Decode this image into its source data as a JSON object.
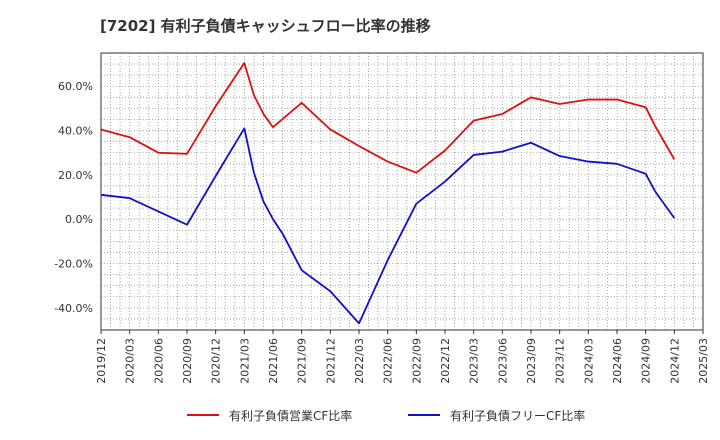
{
  "chart_data": {
    "type": "line",
    "title": "[7202]  有利子負債キャッシュフロー比率の推移",
    "xlabel": "",
    "ylabel": "",
    "ylim": [
      -50,
      75
    ],
    "yticks": [
      60,
      40,
      20,
      0,
      -20,
      -40
    ],
    "ytick_labels": [
      "60.0%",
      "40.0%",
      "20.0%",
      "0.0%",
      "-20.0%",
      "-40.0%"
    ],
    "xticks": [
      "2019/12",
      "2020/03",
      "2020/06",
      "2020/09",
      "2020/12",
      "2021/03",
      "2021/06",
      "2021/09",
      "2021/12",
      "2022/03",
      "2022/06",
      "2022/09",
      "2022/12",
      "2023/03",
      "2023/06",
      "2023/09",
      "2023/12",
      "2024/03",
      "2024/06",
      "2024/09",
      "2024/12",
      "2025/03"
    ],
    "grid": true,
    "legend_position": "bottom",
    "series": [
      {
        "name": "有利子負債営業CF比率",
        "color": "#dd1111",
        "points": [
          [
            "2019/12",
            40.5
          ],
          [
            "2020/03",
            37.0
          ],
          [
            "2020/06",
            30.0
          ],
          [
            "2020/09",
            29.5
          ],
          [
            "2020/12",
            51.0
          ],
          [
            "2021/03",
            70.5
          ],
          [
            "2021/04",
            56.0
          ],
          [
            "2021/05",
            47.5
          ],
          [
            "2021/06",
            41.5
          ],
          [
            "2021/09",
            52.5
          ],
          [
            "2021/12",
            40.5
          ],
          [
            "2022/03",
            33.0
          ],
          [
            "2022/06",
            26.0
          ],
          [
            "2022/09",
            21.0
          ],
          [
            "2022/12",
            31.0
          ],
          [
            "2023/03",
            44.5
          ],
          [
            "2023/06",
            47.5
          ],
          [
            "2023/09",
            55.0
          ],
          [
            "2023/12",
            52.0
          ],
          [
            "2024/03",
            54.0
          ],
          [
            "2024/06",
            54.0
          ],
          [
            "2024/09",
            50.5
          ],
          [
            "2024/10",
            42.0
          ],
          [
            "2024/11",
            34.5
          ],
          [
            "2024/12",
            27.0
          ]
        ]
      },
      {
        "name": "有利子負債フリーCF比率",
        "color": "#1111cc",
        "points": [
          [
            "2019/12",
            11.0
          ],
          [
            "2020/03",
            9.5
          ],
          [
            "2020/06",
            3.5
          ],
          [
            "2020/09",
            -2.5
          ],
          [
            "2020/12",
            19.5
          ],
          [
            "2021/03",
            41.0
          ],
          [
            "2021/04",
            21.0
          ],
          [
            "2021/05",
            8.0
          ],
          [
            "2021/06",
            0.0
          ],
          [
            "2021/07",
            -6.5
          ],
          [
            "2021/09",
            -23.0
          ],
          [
            "2021/12",
            -32.5
          ],
          [
            "2022/03",
            -47.0
          ],
          [
            "2022/06",
            -18.5
          ],
          [
            "2022/09",
            7.0
          ],
          [
            "2022/12",
            17.0
          ],
          [
            "2023/03",
            29.0
          ],
          [
            "2023/06",
            30.5
          ],
          [
            "2023/09",
            34.5
          ],
          [
            "2023/12",
            28.5
          ],
          [
            "2024/03",
            26.0
          ],
          [
            "2024/06",
            25.0
          ],
          [
            "2024/09",
            20.5
          ],
          [
            "2024/10",
            12.5
          ],
          [
            "2024/12",
            0.5
          ]
        ]
      }
    ]
  }
}
